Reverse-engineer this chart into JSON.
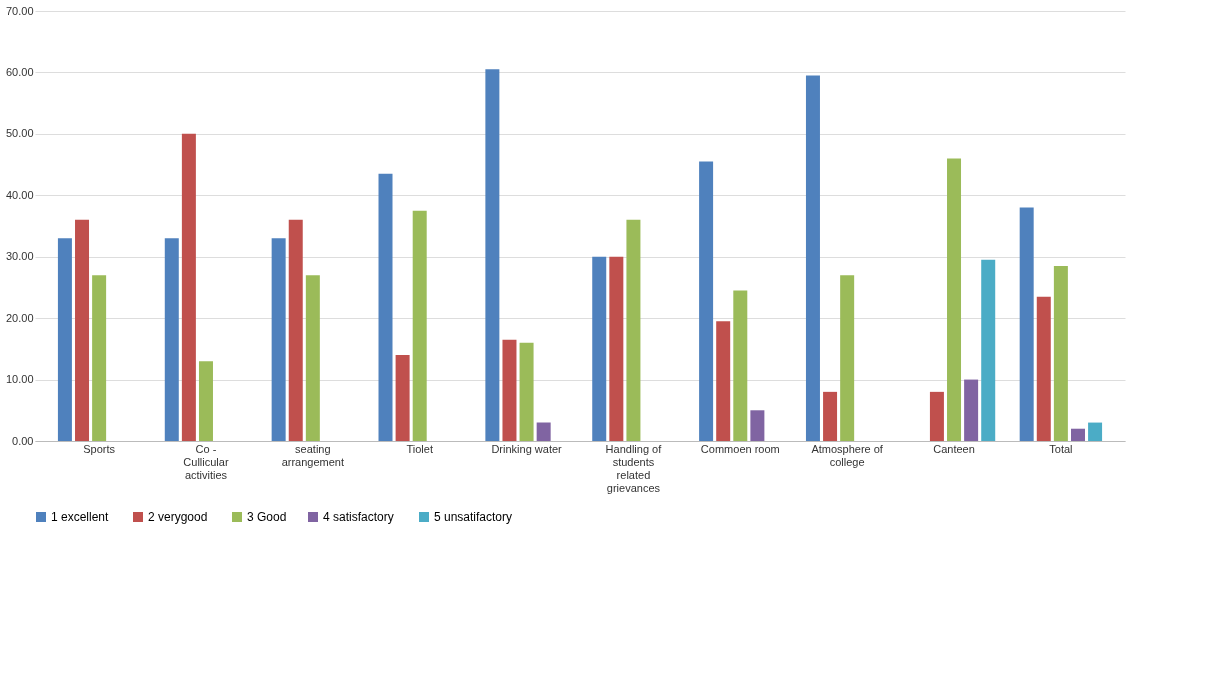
{
  "chart_data": {
    "type": "bar",
    "categories": [
      "Sports",
      "Co - Cullicular activities",
      "seating arrangement",
      "Tiolet",
      "Drinking water",
      "Handling of students related grievances",
      "Commoen room",
      "Atmosphere of college",
      "Canteen",
      "Total"
    ],
    "series": [
      {
        "name": "1  excellent",
        "color": "#4f81bd",
        "values": [
          33,
          33,
          33,
          43.5,
          60.5,
          30,
          45.5,
          59.5,
          0,
          38
        ]
      },
      {
        "name": "2  verygood",
        "color": "#c0504d",
        "values": [
          36,
          50,
          36,
          14,
          16.5,
          30,
          19.5,
          8,
          8,
          23.5
        ]
      },
      {
        "name": "3 Good",
        "color": "#9bbb59",
        "values": [
          27,
          13,
          27,
          37.5,
          16,
          36,
          24.5,
          27,
          46,
          28.5
        ]
      },
      {
        "name": "4  satisfactory",
        "color": "#8064a2",
        "values": [
          0,
          0,
          0,
          0,
          3,
          0,
          5,
          0,
          10,
          2
        ]
      },
      {
        "name": "5  unsatifactory",
        "color": "#4bacc6",
        "values": [
          0,
          0,
          0,
          0,
          0,
          0,
          0,
          0,
          29.5,
          3
        ]
      }
    ],
    "ylim": [
      0,
      70
    ],
    "yticks": [
      {
        "value": 0,
        "label": "0.00"
      },
      {
        "value": 10,
        "label": "10.00"
      },
      {
        "value": 20,
        "label": "20.00"
      },
      {
        "value": 30,
        "label": "30.00"
      },
      {
        "value": 40,
        "label": "40.00"
      },
      {
        "value": 50,
        "label": "50.00"
      },
      {
        "value": 60,
        "label": "60.00"
      },
      {
        "value": 70,
        "label": "70.00"
      }
    ],
    "grid": "y",
    "legend": "bottom"
  }
}
